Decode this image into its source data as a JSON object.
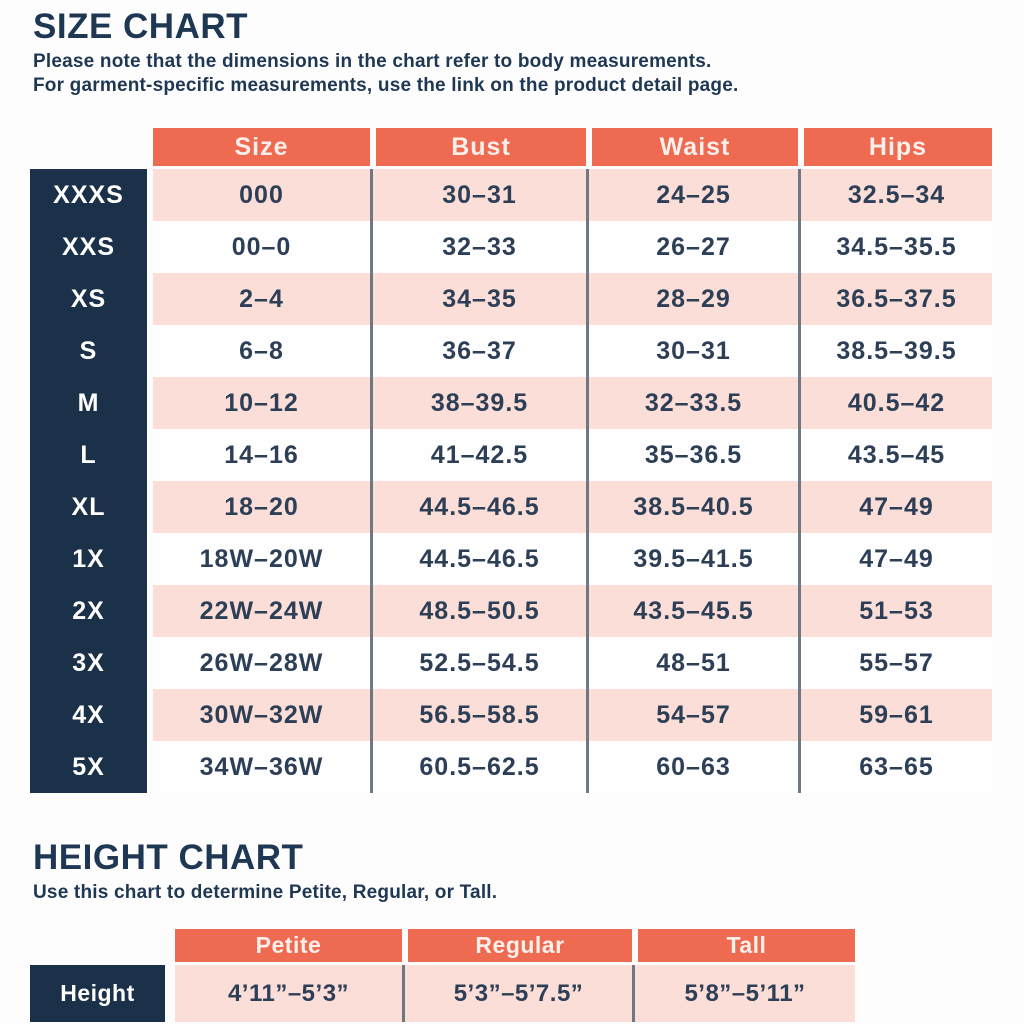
{
  "colors": {
    "accent_orange": "#ee6a51",
    "navy": "#1b3149",
    "pink_row": "#fbded7",
    "text_navy": "#2d3e57",
    "separator_gray": "#6e7883"
  },
  "size_chart": {
    "title": "SIZE CHART",
    "note_line1": "Please note that the dimensions in the chart refer to body measurements.",
    "note_line2": "For garment-specific measurements, use the link on the product detail page.",
    "columns": [
      "Size",
      "Bust",
      "Waist",
      "Hips"
    ],
    "rows": [
      {
        "label": "XXXS",
        "size": "000",
        "bust": "30–31",
        "waist": "24–25",
        "hips": "32.5–34"
      },
      {
        "label": "XXS",
        "size": "00–0",
        "bust": "32–33",
        "waist": "26–27",
        "hips": "34.5–35.5"
      },
      {
        "label": "XS",
        "size": "2–4",
        "bust": "34–35",
        "waist": "28–29",
        "hips": "36.5–37.5"
      },
      {
        "label": "S",
        "size": "6–8",
        "bust": "36–37",
        "waist": "30–31",
        "hips": "38.5–39.5"
      },
      {
        "label": "M",
        "size": "10–12",
        "bust": "38–39.5",
        "waist": "32–33.5",
        "hips": "40.5–42"
      },
      {
        "label": "L",
        "size": "14–16",
        "bust": "41–42.5",
        "waist": "35–36.5",
        "hips": "43.5–45"
      },
      {
        "label": "XL",
        "size": "18–20",
        "bust": "44.5–46.5",
        "waist": "38.5–40.5",
        "hips": "47–49"
      },
      {
        "label": "1X",
        "size": "18W–20W",
        "bust": "44.5–46.5",
        "waist": "39.5–41.5",
        "hips": "47–49"
      },
      {
        "label": "2X",
        "size": "22W–24W",
        "bust": "48.5–50.5",
        "waist": "43.5–45.5",
        "hips": "51–53"
      },
      {
        "label": "3X",
        "size": "26W–28W",
        "bust": "52.5–54.5",
        "waist": "48–51",
        "hips": "55–57"
      },
      {
        "label": "4X",
        "size": "30W–32W",
        "bust": "56.5–58.5",
        "waist": "54–57",
        "hips": "59–61"
      },
      {
        "label": "5X",
        "size": "34W–36W",
        "bust": "60.5–62.5",
        "waist": "60–63",
        "hips": "63–65"
      }
    ]
  },
  "height_chart": {
    "title": "HEIGHT CHART",
    "note": "Use this chart to determine Petite, Regular, or Tall.",
    "columns": [
      "Petite",
      "Regular",
      "Tall"
    ],
    "row_label": "Height",
    "values": [
      "4’11”–5’3”",
      "5’3”–5’7.5”",
      "5’8”–5’11”"
    ]
  }
}
